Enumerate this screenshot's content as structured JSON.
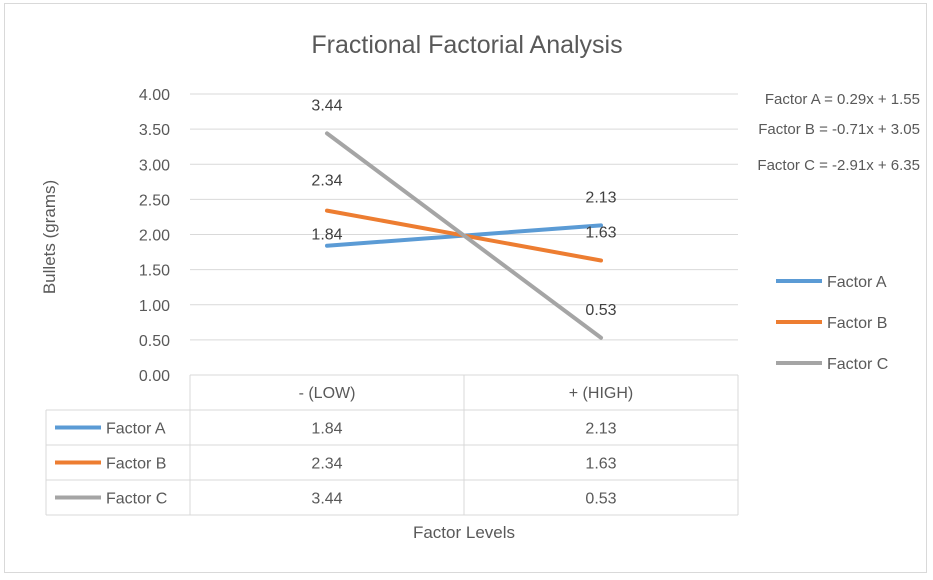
{
  "chart_data": {
    "type": "line",
    "title": "Fractional Factorial Analysis",
    "xlabel": "Factor Levels",
    "ylabel": "Bullets (grams)",
    "categories": [
      "- (LOW)",
      "+ (HIGH)"
    ],
    "ylim": [
      0,
      4
    ],
    "ytick_step": 0.5,
    "ytick_labels": [
      "0.00",
      "0.50",
      "1.00",
      "1.50",
      "2.00",
      "2.50",
      "3.00",
      "3.50",
      "4.00"
    ],
    "grid": true,
    "legend_position": "right",
    "data_table": true,
    "series": [
      {
        "name": "Factor A",
        "values": [
          1.84,
          2.13
        ],
        "labels": [
          "1.84",
          "2.13"
        ],
        "color": "#5b9bd5"
      },
      {
        "name": "Factor B",
        "values": [
          2.34,
          1.63
        ],
        "labels": [
          "2.34",
          "1.63"
        ],
        "color": "#ed7d31"
      },
      {
        "name": "Factor C",
        "values": [
          3.44,
          0.53
        ],
        "labels": [
          "3.44",
          "0.53"
        ],
        "color": "#a5a5a5"
      }
    ],
    "annotations": [
      "Factor A = 0.29x + 1.55",
      "Factor B = -0.71x + 3.05",
      "Factor C = -2.91x + 6.35"
    ]
  }
}
